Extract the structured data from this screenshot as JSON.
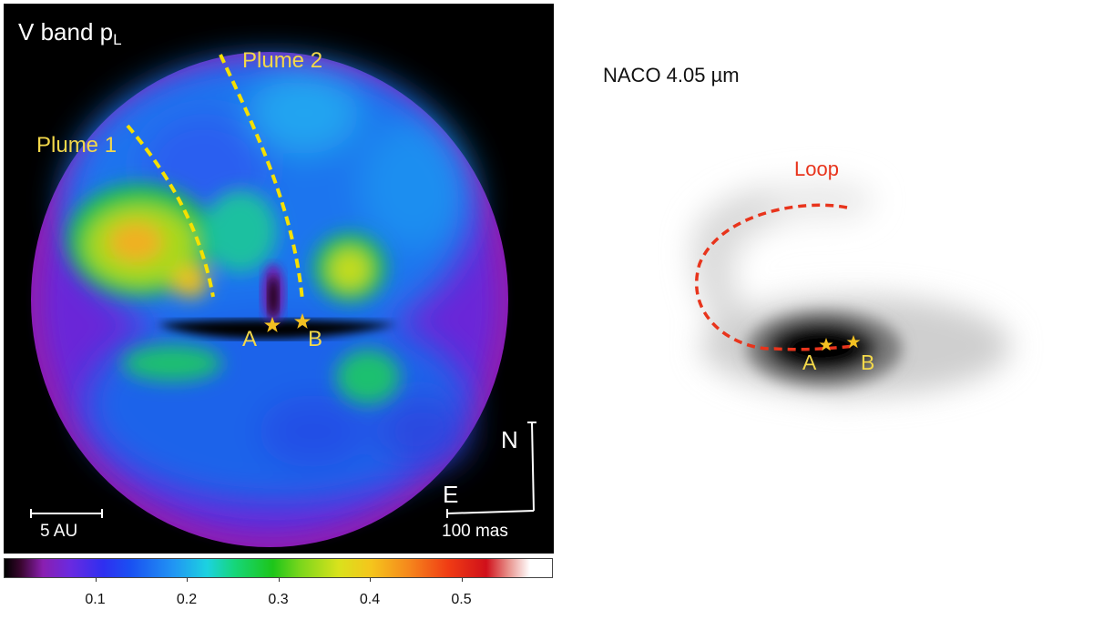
{
  "left_panel": {
    "title_main": "V band p",
    "title_sub": "L",
    "plume1_label": "Plume 1",
    "plume2_label": "Plume 2",
    "star_a_label": "A",
    "star_b_label": "B",
    "north_label": "N",
    "east_label": "E",
    "scale_au_label": "5 AU",
    "scale_mas_label": "100 mas",
    "colors": {
      "plume_line": "#f5e000",
      "star": "#f3c022",
      "text": "#f3d84a"
    }
  },
  "colorbar": {
    "ticks": [
      "0.1",
      "0.2",
      "0.3",
      "0.4",
      "0.5"
    ],
    "tick_values": [
      0.1,
      0.2,
      0.3,
      0.4,
      0.5
    ],
    "range": [
      0,
      0.6
    ]
  },
  "right_panel": {
    "title": "NACO 4.05 µm",
    "loop_label": "Loop",
    "star_a_label": "A",
    "star_b_label": "B",
    "colors": {
      "loop_line": "#e8341c",
      "star": "#f3c022"
    }
  }
}
